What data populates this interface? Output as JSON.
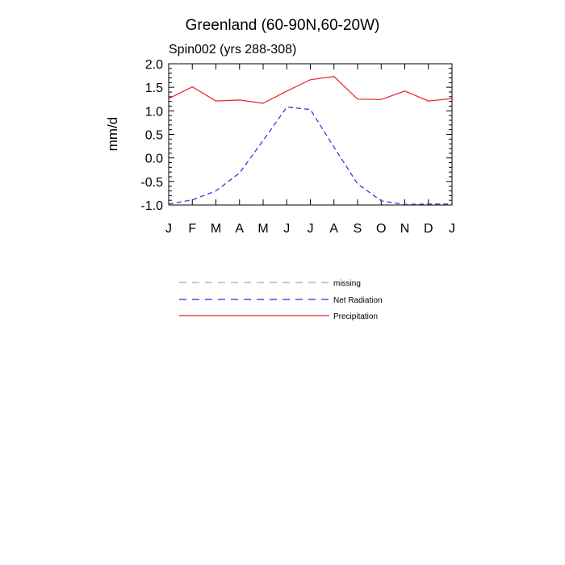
{
  "chart_data": {
    "type": "line",
    "title": "Greenland (60-90N,60-20W)",
    "subtitle": "Spin002 (yrs 288-308)",
    "xlabel": "",
    "ylabel": "mm/d",
    "categories": [
      "J",
      "F",
      "M",
      "A",
      "M",
      "J",
      "J",
      "A",
      "S",
      "O",
      "N",
      "D",
      "J"
    ],
    "ylim": [
      -1.0,
      2.0
    ],
    "yticks": [
      "2.0",
      "1.5",
      "1.0",
      "0.5",
      "0.0",
      "-0.5",
      "-1.0"
    ],
    "grid": false,
    "legend_position": "bottom",
    "series": [
      {
        "name": "Precipitation",
        "color": "#e8202a",
        "style": "solid",
        "values": [
          1.26,
          1.51,
          1.21,
          1.23,
          1.16,
          1.42,
          1.66,
          1.73,
          1.25,
          1.24,
          1.42,
          1.21,
          1.26
        ]
      },
      {
        "name": "Net Radiation",
        "color": "#2b2bd9",
        "style": "dashed",
        "values": [
          -0.98,
          -0.89,
          -0.7,
          -0.32,
          0.37,
          1.08,
          1.03,
          0.23,
          -0.55,
          -0.91,
          -0.99,
          -0.98,
          -0.98
        ]
      }
    ],
    "legend": [
      {
        "label": "missing",
        "color": "#a8a8a8",
        "style": "dashed"
      },
      {
        "label": "Net Radiation",
        "color": "#2b2bd9",
        "style": "dashed"
      },
      {
        "label": "Precipitation",
        "color": "#e8202a",
        "style": "solid"
      }
    ]
  }
}
